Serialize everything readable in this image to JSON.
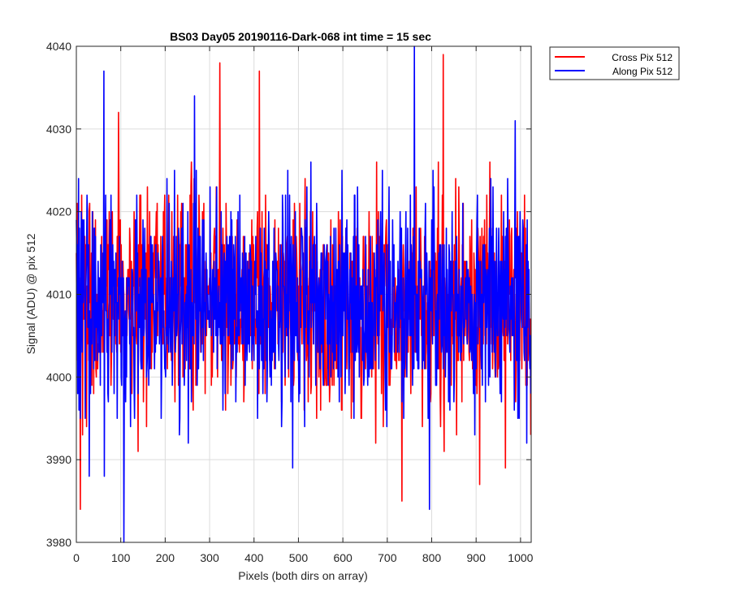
{
  "chart_data": {
    "type": "line",
    "title": "BS03 Day05 20190116-Dark-068 int time = 15 sec",
    "xlabel": "Pixels (both dirs on array)",
    "ylabel": "Signal (ADU) @ pix 512",
    "xlim": [
      0,
      1024
    ],
    "ylim": [
      3980,
      4040
    ],
    "xticks": [
      0,
      100,
      200,
      300,
      400,
      500,
      600,
      700,
      800,
      900,
      1000
    ],
    "yticks": [
      3980,
      3990,
      4000,
      4010,
      4020,
      4030,
      4040
    ],
    "grid": true,
    "legend_position": "top-right outside",
    "series": [
      {
        "name": "Cross Pix 512",
        "color": "#ff0000",
        "x_step": 1,
        "summary": {
          "n": 1024,
          "mean": 4009,
          "min": 3984,
          "max": 4039
        },
        "notable_points": [
          [
            9,
            3984
          ],
          [
            95,
            4032
          ],
          [
            323,
            4038
          ],
          [
            412,
            4037
          ],
          [
            733,
            3985
          ],
          [
            826,
            4039
          ],
          [
            908,
            3987
          ]
        ]
      },
      {
        "name": "Along Pix 512",
        "color": "#0000ff",
        "x_step": 1,
        "summary": {
          "n": 1024,
          "mean": 4009,
          "min": 3980,
          "max": 4040
        },
        "notable_points": [
          [
            62,
            4037
          ],
          [
            63,
            3988
          ],
          [
            107,
            3980
          ],
          [
            266,
            4034
          ],
          [
            761,
            4040
          ],
          [
            795,
            3984
          ],
          [
            988,
            4031
          ]
        ]
      }
    ]
  }
}
